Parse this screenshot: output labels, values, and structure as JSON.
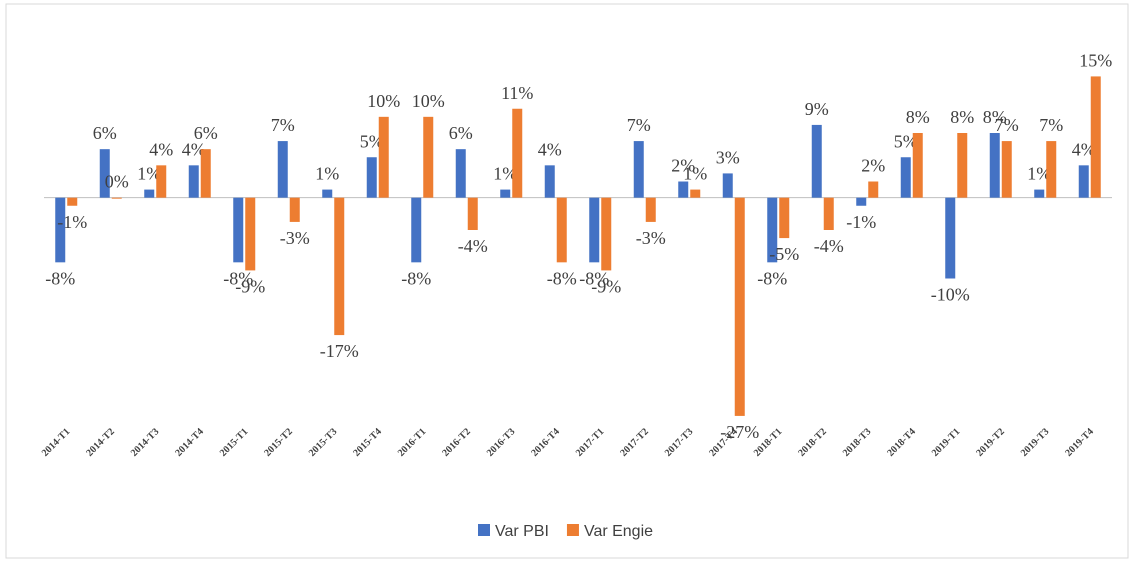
{
  "chart_data": {
    "type": "bar",
    "categories": [
      "2014-T1",
      "2014-T2",
      "2014-T3",
      "2014-T4",
      "2015-T1",
      "2015-T2",
      "2015-T3",
      "2015-T4",
      "2016-T1",
      "2016-T2",
      "2016-T3",
      "2016-T4",
      "2017-T1",
      "2017-T2",
      "2017-T3",
      "2017-T4",
      "2018-T1",
      "2018-T2",
      "2018-T3",
      "2018-T4",
      "2019-T1",
      "2019-T2",
      "2019-T3",
      "2019-T4"
    ],
    "series": [
      {
        "name": "Var PBI",
        "color": "#4472c4",
        "values": [
          -8,
          6,
          1,
          4,
          -8,
          7,
          1,
          5,
          -8,
          6,
          1,
          4,
          -8,
          7,
          2,
          3,
          -8,
          9,
          -1,
          5,
          -10,
          8,
          1,
          4
        ],
        "value_labels": [
          "-8%",
          "6%",
          "1%",
          "4%",
          "-8%",
          "7%",
          "1%",
          "5%",
          "-8%",
          "6%",
          "1%",
          "4%",
          "-8%",
          "7%",
          "2%",
          "3%",
          "-8%",
          "9%",
          "-1%",
          "5%",
          "-10%",
          "8%",
          "1%",
          "4%"
        ]
      },
      {
        "name": "Var Engie",
        "color": "#ed7d31",
        "values": [
          -1,
          0,
          4,
          6,
          -9,
          -3,
          -17,
          10,
          10,
          -4,
          11,
          -8,
          -9,
          -3,
          1,
          -27,
          -5,
          -4,
          2,
          8,
          8,
          7,
          7,
          15
        ],
        "value_labels": [
          "-1%",
          "0%",
          "4%",
          "6%",
          "-9%",
          "-3%",
          "-17%",
          "10%",
          "10%",
          "-4%",
          "11%",
          "-8%",
          "-9%",
          "-3%",
          "1%",
          "-27%",
          "-5%",
          "-4%",
          "2%",
          "8%",
          "8%",
          "7%",
          "7%",
          "15%"
        ]
      }
    ],
    "ylim": [
      -28,
      20
    ],
    "legend": "bottom"
  }
}
